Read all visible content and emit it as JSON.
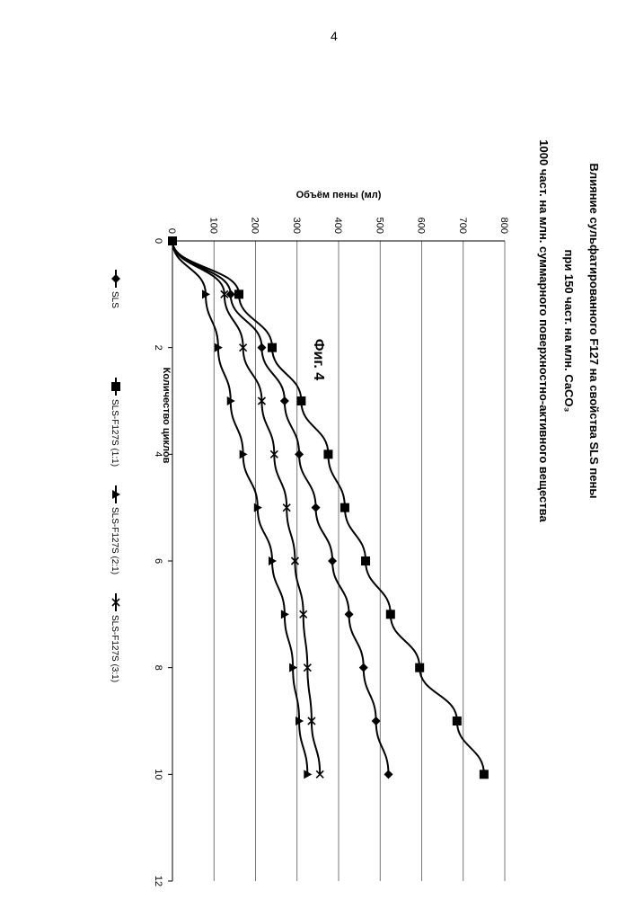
{
  "page_number": "4",
  "figure_caption": "Фиг. 4",
  "chart_data": {
    "type": "line",
    "title_lines": [
      "Влияние сульфатированного F127 на свойства SLS пены",
      "при 150 част. на млн. CaCO₃",
      "1000 част. на млн. суммарного поверхностно-активного вещества"
    ],
    "xlabel": "Количество циклов",
    "ylabel": "Объём пены (мл)",
    "xlim": [
      0,
      12
    ],
    "ylim": [
      0,
      800
    ],
    "x_ticks": [
      "0",
      "2",
      "4",
      "6",
      "8",
      "10",
      "12"
    ],
    "y_ticks": [
      "0",
      "100",
      "200",
      "300",
      "400",
      "500",
      "600",
      "700",
      "800"
    ],
    "grid": "horizontal",
    "legend_position": "bottom",
    "x": [
      0,
      1,
      2,
      3,
      4,
      5,
      6,
      7,
      8,
      9,
      10
    ],
    "series": [
      {
        "name": "SLS",
        "marker": "diamond",
        "values": [
          0,
          140,
          215,
          270,
          305,
          345,
          385,
          425,
          460,
          490,
          520
        ]
      },
      {
        "name": "SLS-F127S (1:1)",
        "marker": "square",
        "values": [
          0,
          160,
          240,
          310,
          375,
          415,
          465,
          525,
          595,
          685,
          750
        ]
      },
      {
        "name": "SLS-F127S (2:1)",
        "marker": "triangle",
        "values": [
          0,
          80,
          110,
          140,
          170,
          205,
          240,
          270,
          290,
          305,
          325
        ]
      },
      {
        "name": "SLS-F127S (3:1)",
        "marker": "x",
        "values": [
          0,
          125,
          170,
          215,
          245,
          275,
          295,
          315,
          325,
          335,
          355
        ]
      }
    ]
  }
}
